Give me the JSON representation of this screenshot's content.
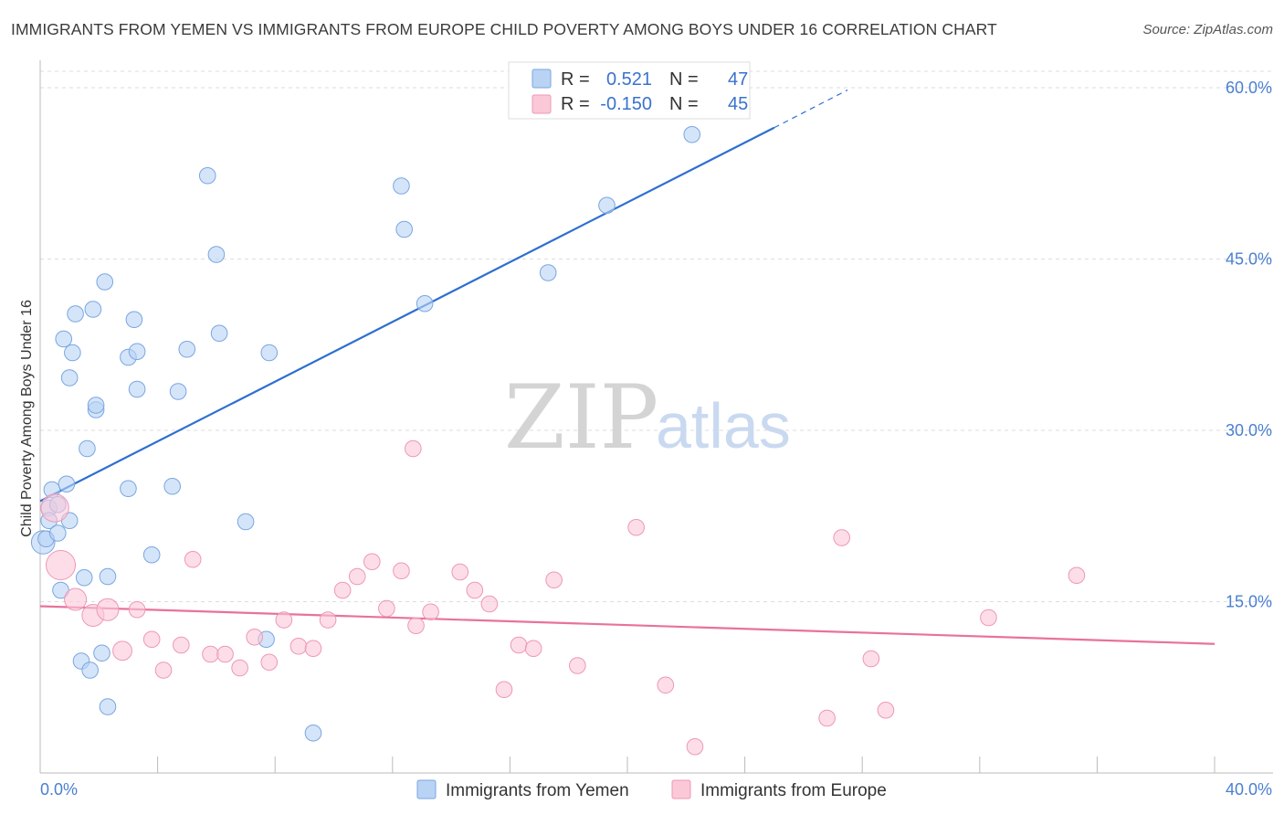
{
  "header": {
    "title": "IMMIGRANTS FROM YEMEN VS IMMIGRANTS FROM EUROPE CHILD POVERTY AMONG BOYS UNDER 16 CORRELATION CHART",
    "source": "Source: ZipAtlas.com"
  },
  "watermark": {
    "zip": "ZIP",
    "atlas": "atlas"
  },
  "legend_top": {
    "rows": [
      {
        "r_label": "R =",
        "r_value": "0.521",
        "n_label": "N =",
        "n_value": "47"
      },
      {
        "r_label": "R =",
        "r_value": "-0.150",
        "n_label": "N =",
        "n_value": "45"
      }
    ]
  },
  "colors": {
    "yemen_fill": "#b9d3f5",
    "yemen_stroke": "#7aa6e0",
    "yemen_line": "#2e6fd0",
    "europe_fill": "#fbc8d8",
    "europe_stroke": "#ee98b4",
    "europe_line": "#e8729a",
    "tick_text": "#4a7fd0",
    "grid": "#dddddd"
  },
  "chart_data": {
    "type": "scatter",
    "title": "IMMIGRANTS FROM YEMEN VS IMMIGRANTS FROM EUROPE CHILD POVERTY AMONG BOYS UNDER 16 CORRELATION CHART",
    "xlabel": "",
    "ylabel": "Child Poverty Among Boys Under 16",
    "xlim": [
      0,
      40
    ],
    "ylim": [
      0,
      60
    ],
    "x_tick_labels": {
      "min": "0.0%",
      "max": "40.0%"
    },
    "y_ticks": [
      {
        "value": 15,
        "label": "15.0%"
      },
      {
        "value": 30,
        "label": "30.0%"
      },
      {
        "value": 45,
        "label": "45.0%"
      },
      {
        "value": 60,
        "label": "60.0%"
      }
    ],
    "series": [
      {
        "name": "Immigrants from Yemen",
        "r": 0.521,
        "n": 47,
        "trend": {
          "x0": 0,
          "y0": 23.8,
          "x1": 25,
          "y1": 56.5,
          "dash_x1": 27.5,
          "dash_y1": 59.8
        },
        "points": [
          {
            "x": 0.1,
            "y": 20.2,
            "s": 1.6
          },
          {
            "x": 0.2,
            "y": 20.5,
            "s": 1.1
          },
          {
            "x": 0.3,
            "y": 23.2,
            "s": 1.1
          },
          {
            "x": 0.3,
            "y": 22.1,
            "s": 1.1
          },
          {
            "x": 0.4,
            "y": 24.8,
            "s": 1.1
          },
          {
            "x": 0.6,
            "y": 23.5,
            "s": 1.1
          },
          {
            "x": 0.6,
            "y": 21.0,
            "s": 1.1
          },
          {
            "x": 0.7,
            "y": 16.0,
            "s": 1.1
          },
          {
            "x": 0.8,
            "y": 38.0,
            "s": 1.1
          },
          {
            "x": 0.9,
            "y": 25.3,
            "s": 1.1
          },
          {
            "x": 1.0,
            "y": 22.1,
            "s": 1.1
          },
          {
            "x": 1.0,
            "y": 34.6,
            "s": 1.1
          },
          {
            "x": 1.1,
            "y": 36.8,
            "s": 1.1
          },
          {
            "x": 1.2,
            "y": 40.2,
            "s": 1.1
          },
          {
            "x": 1.4,
            "y": 9.8,
            "s": 1.1
          },
          {
            "x": 1.5,
            "y": 17.1,
            "s": 1.1
          },
          {
            "x": 1.6,
            "y": 28.4,
            "s": 1.1
          },
          {
            "x": 1.7,
            "y": 9.0,
            "s": 1.1
          },
          {
            "x": 1.8,
            "y": 40.6,
            "s": 1.1
          },
          {
            "x": 1.9,
            "y": 31.8,
            "s": 1.1
          },
          {
            "x": 1.9,
            "y": 32.2,
            "s": 1.1
          },
          {
            "x": 2.1,
            "y": 10.5,
            "s": 1.1
          },
          {
            "x": 2.2,
            "y": 43.0,
            "s": 1.1
          },
          {
            "x": 2.3,
            "y": 5.8,
            "s": 1.1
          },
          {
            "x": 2.3,
            "y": 17.2,
            "s": 1.1
          },
          {
            "x": 3.0,
            "y": 36.4,
            "s": 1.1
          },
          {
            "x": 3.0,
            "y": 24.9,
            "s": 1.1
          },
          {
            "x": 3.2,
            "y": 39.7,
            "s": 1.1
          },
          {
            "x": 3.3,
            "y": 36.9,
            "s": 1.1
          },
          {
            "x": 3.3,
            "y": 33.6,
            "s": 1.1
          },
          {
            "x": 3.8,
            "y": 19.1,
            "s": 1.1
          },
          {
            "x": 4.5,
            "y": 25.1,
            "s": 1.1
          },
          {
            "x": 4.7,
            "y": 33.4,
            "s": 1.1
          },
          {
            "x": 5.0,
            "y": 37.1,
            "s": 1.1
          },
          {
            "x": 5.7,
            "y": 52.3,
            "s": 1.1
          },
          {
            "x": 6.0,
            "y": 45.4,
            "s": 1.1
          },
          {
            "x": 6.1,
            "y": 38.5,
            "s": 1.1
          },
          {
            "x": 7.0,
            "y": 22.0,
            "s": 1.1
          },
          {
            "x": 7.8,
            "y": 36.8,
            "s": 1.1
          },
          {
            "x": 7.7,
            "y": 11.7,
            "s": 1.1
          },
          {
            "x": 9.3,
            "y": 3.5,
            "s": 1.1
          },
          {
            "x": 12.3,
            "y": 51.4,
            "s": 1.1
          },
          {
            "x": 12.4,
            "y": 47.6,
            "s": 1.1
          },
          {
            "x": 13.1,
            "y": 41.1,
            "s": 1.1
          },
          {
            "x": 17.3,
            "y": 43.8,
            "s": 1.1
          },
          {
            "x": 19.3,
            "y": 49.7,
            "s": 1.1
          },
          {
            "x": 22.2,
            "y": 55.9,
            "s": 1.1
          }
        ]
      },
      {
        "name": "Immigrants from Europe",
        "r": -0.15,
        "n": 45,
        "trend": {
          "x0": 0,
          "y0": 14.6,
          "x1": 40,
          "y1": 11.3
        },
        "points": [
          {
            "x": 0.5,
            "y": 23.2,
            "s": 1.9
          },
          {
            "x": 0.7,
            "y": 18.2,
            "s": 2.0
          },
          {
            "x": 1.2,
            "y": 15.2,
            "s": 1.5
          },
          {
            "x": 1.8,
            "y": 13.8,
            "s": 1.5
          },
          {
            "x": 2.3,
            "y": 14.3,
            "s": 1.5
          },
          {
            "x": 2.8,
            "y": 10.7,
            "s": 1.3
          },
          {
            "x": 3.3,
            "y": 14.3,
            "s": 1.1
          },
          {
            "x": 3.8,
            "y": 11.7,
            "s": 1.1
          },
          {
            "x": 4.2,
            "y": 9.0,
            "s": 1.1
          },
          {
            "x": 4.8,
            "y": 11.2,
            "s": 1.1
          },
          {
            "x": 5.2,
            "y": 18.7,
            "s": 1.1
          },
          {
            "x": 5.8,
            "y": 10.4,
            "s": 1.1
          },
          {
            "x": 6.3,
            "y": 10.4,
            "s": 1.1
          },
          {
            "x": 6.8,
            "y": 9.2,
            "s": 1.1
          },
          {
            "x": 7.3,
            "y": 11.9,
            "s": 1.1
          },
          {
            "x": 7.8,
            "y": 9.7,
            "s": 1.1
          },
          {
            "x": 8.3,
            "y": 13.4,
            "s": 1.1
          },
          {
            "x": 8.8,
            "y": 11.1,
            "s": 1.1
          },
          {
            "x": 9.3,
            "y": 10.9,
            "s": 1.1
          },
          {
            "x": 9.8,
            "y": 13.4,
            "s": 1.1
          },
          {
            "x": 10.3,
            "y": 16.0,
            "s": 1.1
          },
          {
            "x": 10.8,
            "y": 17.2,
            "s": 1.1
          },
          {
            "x": 11.3,
            "y": 18.5,
            "s": 1.1
          },
          {
            "x": 11.8,
            "y": 14.4,
            "s": 1.1
          },
          {
            "x": 12.3,
            "y": 17.7,
            "s": 1.1
          },
          {
            "x": 12.8,
            "y": 12.9,
            "s": 1.1
          },
          {
            "x": 12.7,
            "y": 28.4,
            "s": 1.1
          },
          {
            "x": 13.3,
            "y": 14.1,
            "s": 1.1
          },
          {
            "x": 14.3,
            "y": 17.6,
            "s": 1.1
          },
          {
            "x": 14.8,
            "y": 16.0,
            "s": 1.1
          },
          {
            "x": 15.3,
            "y": 14.8,
            "s": 1.1
          },
          {
            "x": 15.8,
            "y": 7.3,
            "s": 1.1
          },
          {
            "x": 16.3,
            "y": 11.2,
            "s": 1.1
          },
          {
            "x": 16.8,
            "y": 10.9,
            "s": 1.1
          },
          {
            "x": 17.5,
            "y": 16.9,
            "s": 1.1
          },
          {
            "x": 18.3,
            "y": 9.4,
            "s": 1.1
          },
          {
            "x": 20.3,
            "y": 21.5,
            "s": 1.1
          },
          {
            "x": 21.3,
            "y": 7.7,
            "s": 1.1
          },
          {
            "x": 22.3,
            "y": 2.3,
            "s": 1.1
          },
          {
            "x": 26.8,
            "y": 4.8,
            "s": 1.1
          },
          {
            "x": 27.3,
            "y": 20.6,
            "s": 1.1
          },
          {
            "x": 28.3,
            "y": 10.0,
            "s": 1.1
          },
          {
            "x": 28.8,
            "y": 5.5,
            "s": 1.1
          },
          {
            "x": 32.3,
            "y": 13.6,
            "s": 1.1
          },
          {
            "x": 35.3,
            "y": 17.3,
            "s": 1.1
          }
        ]
      }
    ]
  }
}
